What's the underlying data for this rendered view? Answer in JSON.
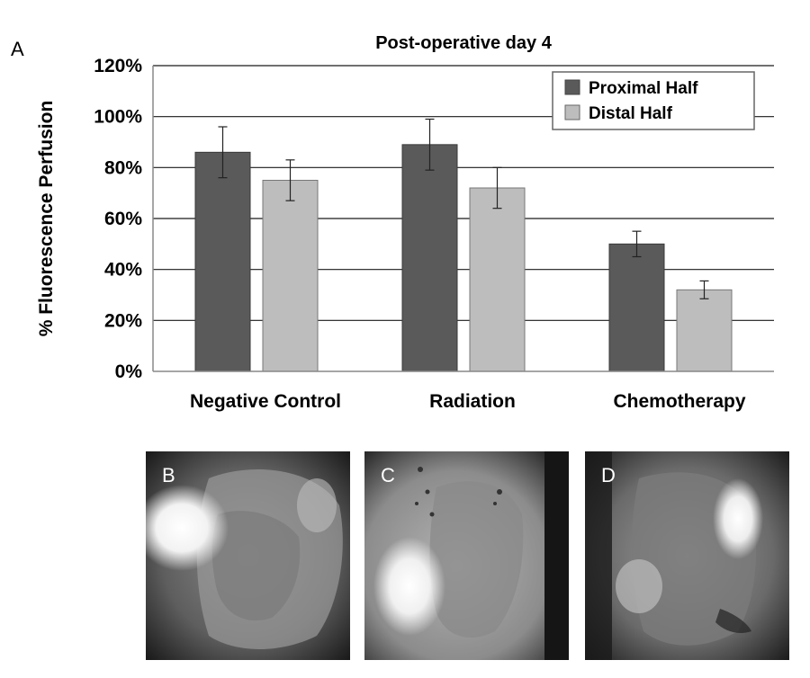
{
  "panel_a": {
    "letter": "A"
  },
  "chart_data": {
    "type": "bar",
    "title": "Post-operative day 4",
    "xlabel": "",
    "ylabel": "% Fluorescence Perfusion",
    "categories": [
      "Negative Control",
      "Radiation",
      "Chemotherapy"
    ],
    "series": [
      {
        "name": "Proximal Half",
        "values": [
          86,
          89,
          50
        ],
        "error": [
          10,
          10,
          5
        ],
        "color": "#5a5a5a"
      },
      {
        "name": "Distal Half",
        "values": [
          75,
          72,
          32
        ],
        "error": [
          8,
          8,
          3.5
        ],
        "color": "#bdbdbd"
      }
    ],
    "ylim": [
      0,
      120
    ],
    "yticks": [
      0,
      20,
      40,
      60,
      80,
      100,
      120
    ],
    "ytick_labels": [
      "0%",
      "20%",
      "40%",
      "60%",
      "80%",
      "100%",
      "120%"
    ],
    "grid": true,
    "legend_position": "top-right"
  },
  "photos": [
    {
      "letter": "B"
    },
    {
      "letter": "C"
    },
    {
      "letter": "D"
    }
  ]
}
